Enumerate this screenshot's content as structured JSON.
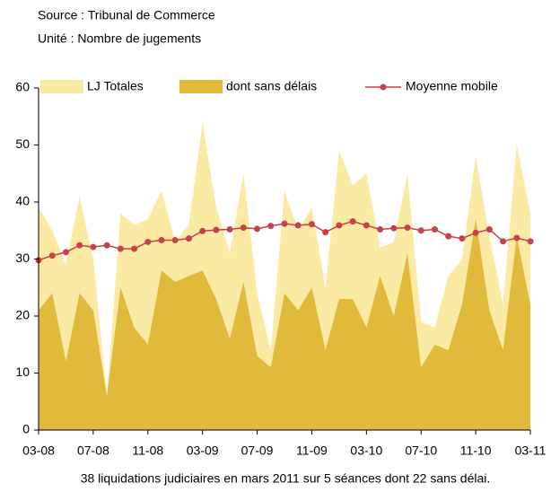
{
  "chart_data": {
    "type": "area",
    "source": "Source : Tribunal de Commerce",
    "unit": "Unité : Nombre de jugements",
    "caption": "38 liquidations judiciaires en mars 2011 sur 5 séances dont 22 sans délai.",
    "categories": [
      "03-08",
      null,
      null,
      null,
      "07-08",
      null,
      null,
      null,
      "11-08",
      null,
      null,
      null,
      "03-09",
      null,
      null,
      null,
      "07-09",
      null,
      null,
      null,
      "11-09",
      null,
      null,
      null,
      "03-10",
      null,
      null,
      null,
      "07-10",
      null,
      null,
      null,
      "11-10",
      null,
      null,
      null,
      "03-11"
    ],
    "series": [
      {
        "name": "LJ Totales",
        "kind": "area",
        "color": "#fbeaa3",
        "values": [
          39,
          35,
          29,
          41,
          30,
          6,
          38,
          36,
          37,
          42,
          33,
          36,
          54,
          39,
          31,
          45,
          24,
          14,
          42,
          35,
          39,
          25,
          49,
          43,
          45,
          32,
          33,
          45,
          19,
          18,
          27,
          30,
          48,
          34,
          22,
          50,
          38
        ]
      },
      {
        "name": "dont sans délais",
        "kind": "area",
        "color": "#e1b93b",
        "values": [
          21,
          24,
          12,
          24,
          21,
          6,
          25,
          18,
          15,
          28,
          26,
          27,
          28,
          23,
          16,
          26,
          13,
          11,
          24,
          21,
          25,
          14,
          23,
          23,
          18,
          27,
          20,
          31,
          11,
          15,
          14,
          22,
          37,
          21,
          14,
          34,
          22
        ]
      },
      {
        "name": "Moyenne mobile",
        "kind": "line",
        "color": "#c8404a",
        "values": [
          29.8,
          30.6,
          31.2,
          32.4,
          32.1,
          32.4,
          31.8,
          31.8,
          33,
          33.3,
          33.3,
          33.6,
          34.9,
          35.1,
          35.2,
          35.5,
          35.3,
          35.8,
          36.2,
          35.9,
          36.1,
          34.7,
          35.9,
          36.6,
          35.9,
          35.2,
          35.4,
          35.5,
          35,
          35.2,
          34,
          33.6,
          34.6,
          35.2,
          33.1,
          33.7,
          33.1
        ]
      }
    ],
    "ylim": [
      0,
      60
    ],
    "yticks": [
      0,
      10,
      20,
      30,
      40,
      50,
      60
    ],
    "grid": false
  }
}
